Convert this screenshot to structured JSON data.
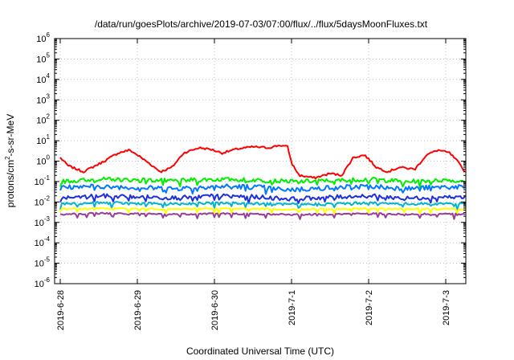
{
  "chart_data": {
    "type": "line",
    "title": "/data/run/goesPlots/archive/2019-07-03/07:00/flux/../flux/5daysMoonFluxes.txt",
    "xlabel": "Coordinated Universal Time (UTC)",
    "ylabel": {
      "pre": "protons/cm",
      "sup": "2",
      "post": "-s-sr-MeV"
    },
    "yscale": "log",
    "ylim": [
      1e-06,
      1000000.0
    ],
    "xlim_days_label_range": [
      "2019-6-28",
      "2019-7-3 ~07:00"
    ],
    "x_ticks": [
      "2019-6-28",
      "2019-6-29",
      "2019-6-30",
      "2019-7-1",
      "2019-7-2",
      "2019-7-3"
    ],
    "y_ticks": [
      {
        "base": "10",
        "exp": "-6"
      },
      {
        "base": "10",
        "exp": "-5"
      },
      {
        "base": "10",
        "exp": "-4"
      },
      {
        "base": "10",
        "exp": "-3"
      },
      {
        "base": "10",
        "exp": "-2"
      },
      {
        "base": "10",
        "exp": "-1"
      },
      {
        "base": "10",
        "exp": "0"
      },
      {
        "base": "10",
        "exp": "1"
      },
      {
        "base": "10",
        "exp": "2"
      },
      {
        "base": "10",
        "exp": "3"
      },
      {
        "base": "10",
        "exp": "4"
      },
      {
        "base": "10",
        "exp": "5"
      },
      {
        "base": "10",
        "exp": "6"
      }
    ],
    "grid": true,
    "series": [
      {
        "color": "#ff0000",
        "x": [
          0,
          0.1,
          0.3,
          0.55,
          0.75,
          0.9,
          1.0,
          1.15,
          1.3,
          1.45,
          1.6,
          1.8,
          1.95,
          2.1,
          2.3,
          2.5,
          2.7,
          2.85,
          2.95,
          3.0,
          3.1,
          3.3,
          3.5,
          3.65,
          3.8,
          3.95,
          4.1,
          4.25,
          4.4,
          4.6,
          4.75,
          4.9,
          5.05,
          5.15,
          5.25
        ],
        "y": [
          1.5,
          0.6,
          0.3,
          0.9,
          2.5,
          3.5,
          2.0,
          0.8,
          0.3,
          0.5,
          2.5,
          4.5,
          3.8,
          2.5,
          4.0,
          5.0,
          4.5,
          6.0,
          5.0,
          0.8,
          0.2,
          0.15,
          0.25,
          0.2,
          1.5,
          2.0,
          0.5,
          0.3,
          0.5,
          0.4,
          2.0,
          3.5,
          2.5,
          1.0,
          0.3
        ]
      },
      {
        "color": "#00ee00",
        "x": [
          0,
          0.5,
          1.0,
          1.5,
          2.0,
          2.5,
          3.0,
          3.5,
          4.0,
          4.5,
          5.0,
          5.25
        ],
        "y": [
          0.1,
          0.13,
          0.12,
          0.11,
          0.13,
          0.12,
          0.1,
          0.11,
          0.13,
          0.1,
          0.12,
          0.11
        ]
      },
      {
        "color": "#0078ff",
        "x": [
          0,
          0.5,
          1.0,
          1.5,
          2.0,
          2.5,
          3.0,
          3.5,
          4.0,
          4.5,
          5.0,
          5.25
        ],
        "y": [
          0.05,
          0.06,
          0.05,
          0.045,
          0.06,
          0.055,
          0.04,
          0.05,
          0.06,
          0.045,
          0.055,
          0.05
        ]
      },
      {
        "color": "#1f2fdd",
        "x": [
          0,
          0.5,
          1.0,
          1.5,
          2.0,
          2.5,
          3.0,
          3.5,
          4.0,
          4.5,
          5.0,
          5.25
        ],
        "y": [
          0.015,
          0.02,
          0.018,
          0.016,
          0.02,
          0.018,
          0.014,
          0.017,
          0.02,
          0.015,
          0.018,
          0.016
        ]
      },
      {
        "color": "#00b4cc",
        "x": [
          0,
          0.5,
          1.0,
          1.5,
          2.0,
          2.5,
          3.0,
          3.5,
          4.0,
          4.5,
          5.0,
          5.25
        ],
        "y": [
          0.008,
          0.009,
          0.0085,
          0.008,
          0.009,
          0.0085,
          0.0075,
          0.008,
          0.009,
          0.008,
          0.0085,
          0.008
        ]
      },
      {
        "color": "#ffff00",
        "x": [
          0,
          0.5,
          1.0,
          1.5,
          2.0,
          2.5,
          3.0,
          3.5,
          4.0,
          4.5,
          5.0,
          5.25
        ],
        "y": [
          0.0045,
          0.0048,
          0.0046,
          0.0045,
          0.0048,
          0.0046,
          0.0044,
          0.0045,
          0.0047,
          0.0045,
          0.0046,
          0.0045
        ]
      },
      {
        "color": "#993d99",
        "x": [
          0,
          0.5,
          1.0,
          1.5,
          2.0,
          2.5,
          3.0,
          3.5,
          4.0,
          4.5,
          5.0,
          5.25
        ],
        "y": [
          0.0025,
          0.0028,
          0.0026,
          0.0025,
          0.0027,
          0.0026,
          0.0024,
          0.0025,
          0.0027,
          0.0025,
          0.0026,
          0.0025
        ]
      }
    ]
  }
}
